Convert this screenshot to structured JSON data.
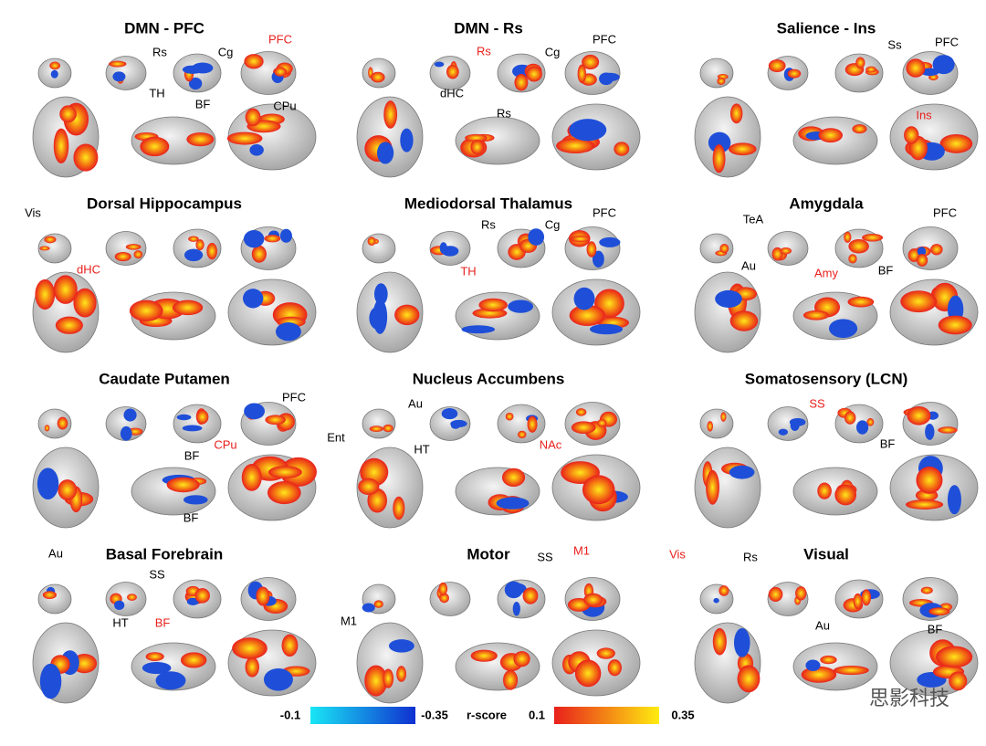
{
  "panels": [
    {
      "title": "DMN - PFC",
      "labels": [
        {
          "text": "Rs",
          "color": "#000000"
        },
        {
          "text": "TH",
          "color": "#000000"
        },
        {
          "text": "Cg",
          "color": "#000000"
        },
        {
          "text": "BF",
          "color": "#000000"
        },
        {
          "text": "PFC",
          "color": "#e8201c"
        },
        {
          "text": "CPu",
          "color": "#000000"
        }
      ]
    },
    {
      "title": "DMN - Rs",
      "labels": [
        {
          "text": "Rs",
          "color": "#e8201c"
        },
        {
          "text": "dHC",
          "color": "#000000"
        },
        {
          "text": "Cg",
          "color": "#000000"
        },
        {
          "text": "PFC",
          "color": "#000000"
        },
        {
          "text": "Rs",
          "color": "#000000"
        }
      ]
    },
    {
      "title": "Salience - Ins",
      "labels": [
        {
          "text": "Ss",
          "color": "#000000"
        },
        {
          "text": "PFC",
          "color": "#000000"
        },
        {
          "text": "Ins",
          "color": "#e8201c"
        }
      ]
    },
    {
      "title": "Dorsal Hippocampus",
      "labels": [
        {
          "text": "Vis",
          "color": "#000000"
        },
        {
          "text": "dHC",
          "color": "#e8201c"
        }
      ]
    },
    {
      "title": "Mediodorsal Thalamus",
      "labels": [
        {
          "text": "Rs",
          "color": "#000000"
        },
        {
          "text": "Cg",
          "color": "#000000"
        },
        {
          "text": "PFC",
          "color": "#000000"
        },
        {
          "text": "TH",
          "color": "#e8201c"
        }
      ]
    },
    {
      "title": "Amygdala",
      "labels": [
        {
          "text": "TeA",
          "color": "#000000"
        },
        {
          "text": "Au",
          "color": "#000000"
        },
        {
          "text": "Amy",
          "color": "#e8201c"
        },
        {
          "text": "PFC",
          "color": "#000000"
        },
        {
          "text": "BF",
          "color": "#000000"
        }
      ]
    },
    {
      "title": "Caudate Putamen",
      "labels": [
        {
          "text": "PFC",
          "color": "#000000"
        },
        {
          "text": "BF",
          "color": "#000000"
        },
        {
          "text": "CPu",
          "color": "#e8201c"
        },
        {
          "text": "BF",
          "color": "#000000"
        }
      ]
    },
    {
      "title": "Nucleus Accumbens",
      "labels": [
        {
          "text": "Au",
          "color": "#000000"
        },
        {
          "text": "Ent",
          "color": "#000000"
        },
        {
          "text": "HT",
          "color": "#000000"
        },
        {
          "text": "NAc",
          "color": "#e8201c"
        }
      ]
    },
    {
      "title": "Somatosensory (LCN)",
      "labels": [
        {
          "text": "SS",
          "color": "#e8201c"
        },
        {
          "text": "BF",
          "color": "#000000"
        }
      ]
    },
    {
      "title": "Basal Forebrain",
      "labels": [
        {
          "text": "Au",
          "color": "#000000"
        },
        {
          "text": "SS",
          "color": "#000000"
        },
        {
          "text": "HT",
          "color": "#000000"
        },
        {
          "text": "BF",
          "color": "#e8201c"
        }
      ]
    },
    {
      "title": "Motor",
      "labels": [
        {
          "text": "SS",
          "color": "#000000"
        },
        {
          "text": "M1",
          "color": "#e8201c"
        },
        {
          "text": "M1",
          "color": "#000000"
        }
      ]
    },
    {
      "title": "Visual",
      "labels": [
        {
          "text": "Vis",
          "color": "#e8201c"
        },
        {
          "text": "Rs",
          "color": "#000000"
        },
        {
          "text": "Au",
          "color": "#000000"
        },
        {
          "text": "BF",
          "color": "#000000"
        }
      ]
    }
  ],
  "colorbar": {
    "label": "r-score",
    "negative": [
      -0.1,
      -0.35
    ],
    "negative_colors": [
      "#19e6f5",
      "#1030d0"
    ],
    "positive": [
      0.1,
      0.35
    ],
    "positive_colors": [
      "#e8201c",
      "#ffec10"
    ]
  },
  "watermark": "思影科技"
}
